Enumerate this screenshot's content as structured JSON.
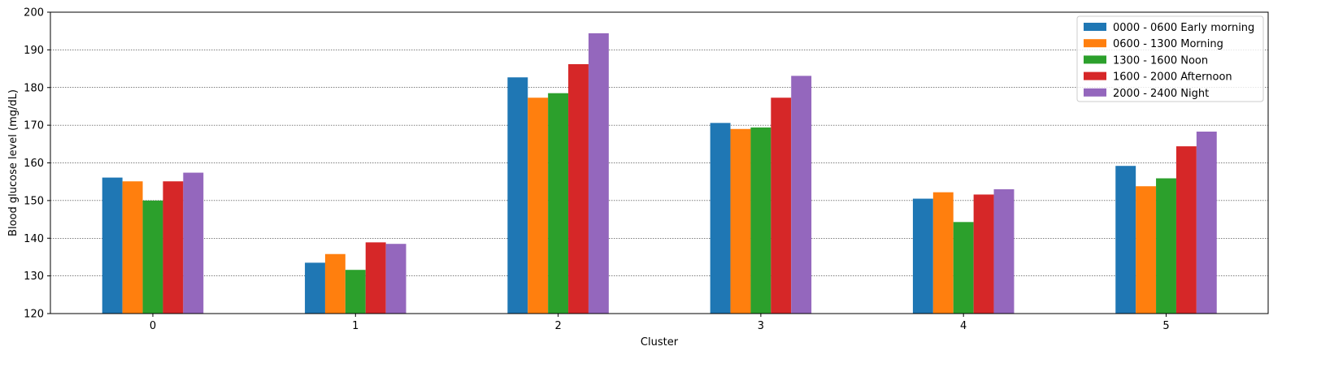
{
  "chart_data": {
    "type": "bar",
    "title": "",
    "xlabel": "Cluster",
    "ylabel": "Blood glucose level (mg/dL)",
    "categories": [
      "0",
      "1",
      "2",
      "3",
      "4",
      "5"
    ],
    "ylim": [
      120,
      200
    ],
    "yticks": [
      "120",
      "130",
      "140",
      "150",
      "160",
      "170",
      "180",
      "190",
      "200"
    ],
    "grid": "horizontal dotted",
    "legend_position": "top-right",
    "series": [
      {
        "name": "0000 - 0600 Early morning",
        "color": "#1f77b4",
        "values": [
          156.1,
          133.5,
          182.7,
          170.6,
          150.5,
          159.2
        ]
      },
      {
        "name": "0600 - 1300 Morning",
        "color": "#ff7f0e",
        "values": [
          155.1,
          135.8,
          177.3,
          169.0,
          152.2,
          153.8
        ]
      },
      {
        "name": "1300 - 1600 Noon",
        "color": "#2ca02c",
        "values": [
          150.0,
          131.6,
          178.5,
          169.4,
          144.3,
          155.9
        ]
      },
      {
        "name": "1600 - 2000 Afternoon",
        "color": "#d62728",
        "values": [
          155.1,
          138.9,
          186.2,
          177.3,
          151.6,
          164.4
        ]
      },
      {
        "name": "2000 - 2400 Night",
        "color": "#9467bd",
        "values": [
          157.4,
          138.5,
          194.4,
          183.1,
          153.0,
          168.3
        ]
      }
    ]
  }
}
